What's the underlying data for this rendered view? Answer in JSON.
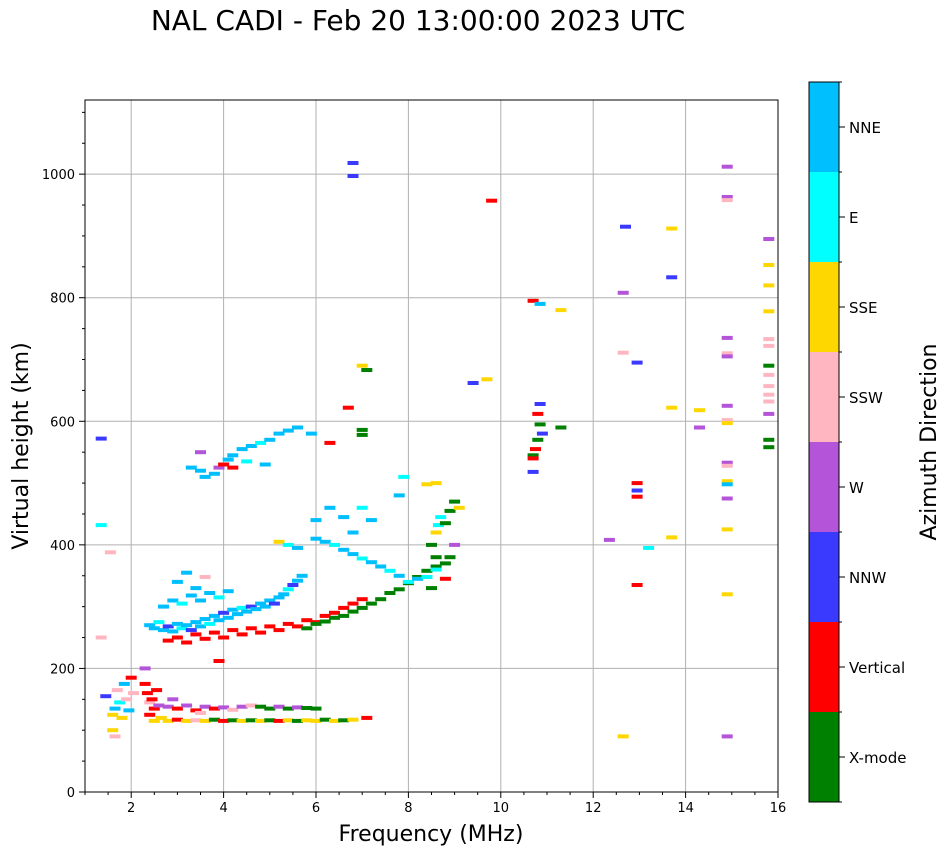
{
  "chart_data": {
    "type": "scatter",
    "title": "NAL CADI - Feb 20 13:00:00 2023 UTC",
    "xlabel": "Frequency (MHz)",
    "ylabel": "Virtual height (km)",
    "xlim": [
      1,
      16
    ],
    "ylim": [
      0,
      1120
    ],
    "xticks": [
      2,
      4,
      6,
      8,
      10,
      12,
      14,
      16
    ],
    "yticks": [
      0,
      200,
      400,
      600,
      800,
      1000
    ],
    "grid": true,
    "colorbar_label": "Azimuth Direction",
    "categories": [
      {
        "name": "X-mode",
        "color": "#008000"
      },
      {
        "name": "Vertical",
        "color": "#ff0000"
      },
      {
        "name": "NNW",
        "color": "#3a3aff"
      },
      {
        "name": "W",
        "color": "#b454d8"
      },
      {
        "name": "SSW",
        "color": "#ffb6c1"
      },
      {
        "name": "SSE",
        "color": "#ffd700"
      },
      {
        "name": "E",
        "color": "#00ffff"
      },
      {
        "name": "NNE",
        "color": "#00bfff"
      }
    ],
    "points": [
      [
        1.35,
        572,
        "NNW"
      ],
      [
        1.35,
        432,
        "E"
      ],
      [
        1.35,
        250,
        "SSW"
      ],
      [
        1.55,
        388,
        "SSW"
      ],
      [
        1.45,
        155,
        "NNW"
      ],
      [
        1.6,
        125,
        "SSE"
      ],
      [
        1.65,
        135,
        "NNE"
      ],
      [
        1.7,
        165,
        "SSW"
      ],
      [
        1.75,
        145,
        "E"
      ],
      [
        1.8,
        120,
        "SSE"
      ],
      [
        1.85,
        175,
        "NNE"
      ],
      [
        1.9,
        150,
        "SSW"
      ],
      [
        1.95,
        132,
        "NNE"
      ],
      [
        2.0,
        185,
        "Vertical"
      ],
      [
        2.05,
        160,
        "SSW"
      ],
      [
        1.6,
        100,
        "SSE"
      ],
      [
        1.65,
        90,
        "SSW"
      ],
      [
        2.3,
        175,
        "Vertical"
      ],
      [
        2.35,
        160,
        "Vertical"
      ],
      [
        2.4,
        145,
        "SSW"
      ],
      [
        2.45,
        150,
        "Vertical"
      ],
      [
        2.5,
        135,
        "Vertical"
      ],
      [
        2.55,
        165,
        "Vertical"
      ],
      [
        2.6,
        140,
        "W"
      ],
      [
        2.65,
        120,
        "SSE"
      ],
      [
        2.3,
        200,
        "W"
      ],
      [
        2.4,
        125,
        "Vertical"
      ],
      [
        2.5,
        115,
        "SSE"
      ],
      [
        2.8,
        138,
        "W"
      ],
      [
        3.0,
        135,
        "Vertical"
      ],
      [
        3.2,
        140,
        "W"
      ],
      [
        3.4,
        132,
        "Vertical"
      ],
      [
        3.6,
        138,
        "W"
      ],
      [
        3.8,
        135,
        "Vertical"
      ],
      [
        4.0,
        137,
        "W"
      ],
      [
        4.2,
        133,
        "SSW"
      ],
      [
        4.4,
        138,
        "W"
      ],
      [
        4.6,
        140,
        "SSW"
      ],
      [
        4.8,
        138,
        "X-mode"
      ],
      [
        5.0,
        135,
        "X-mode"
      ],
      [
        5.2,
        138,
        "W"
      ],
      [
        5.4,
        135,
        "X-mode"
      ],
      [
        5.6,
        137,
        "W"
      ],
      [
        5.8,
        136,
        "X-mode"
      ],
      [
        6.0,
        135,
        "X-mode"
      ],
      [
        2.8,
        115,
        "SSE"
      ],
      [
        3.0,
        117,
        "Vertical"
      ],
      [
        3.2,
        115,
        "SSE"
      ],
      [
        3.4,
        116,
        "SSW"
      ],
      [
        3.6,
        115,
        "SSE"
      ],
      [
        3.8,
        117,
        "X-mode"
      ],
      [
        4.0,
        115,
        "Vertical"
      ],
      [
        4.2,
        116,
        "X-mode"
      ],
      [
        4.4,
        115,
        "SSE"
      ],
      [
        4.6,
        116,
        "X-mode"
      ],
      [
        4.8,
        115,
        "SSE"
      ],
      [
        5.0,
        116,
        "X-mode"
      ],
      [
        5.2,
        115,
        "Vertical"
      ],
      [
        5.4,
        116,
        "SSE"
      ],
      [
        5.6,
        115,
        "X-mode"
      ],
      [
        5.8,
        116,
        "SSE"
      ],
      [
        6.0,
        115,
        "SSE"
      ],
      [
        6.2,
        117,
        "X-mode"
      ],
      [
        6.4,
        115,
        "SSE"
      ],
      [
        6.6,
        116,
        "X-mode"
      ],
      [
        6.8,
        117,
        "SSE"
      ],
      [
        7.1,
        120,
        "Vertical"
      ],
      [
        2.9,
        150,
        "W"
      ],
      [
        3.5,
        128,
        "SSW"
      ],
      [
        2.4,
        270,
        "NNE"
      ],
      [
        2.5,
        265,
        "NNE"
      ],
      [
        2.6,
        275,
        "E"
      ],
      [
        2.7,
        262,
        "NNE"
      ],
      [
        2.8,
        268,
        "NNW"
      ],
      [
        2.9,
        260,
        "NNE"
      ],
      [
        3.0,
        272,
        "NNE"
      ],
      [
        3.1,
        265,
        "E"
      ],
      [
        3.2,
        270,
        "NNE"
      ],
      [
        3.3,
        262,
        "NNW"
      ],
      [
        3.4,
        275,
        "NNE"
      ],
      [
        3.5,
        268,
        "NNE"
      ],
      [
        3.6,
        280,
        "NNE"
      ],
      [
        3.7,
        272,
        "E"
      ],
      [
        3.8,
        285,
        "NNE"
      ],
      [
        3.9,
        278,
        "NNE"
      ],
      [
        4.0,
        290,
        "NNW"
      ],
      [
        4.1,
        282,
        "NNE"
      ],
      [
        4.2,
        295,
        "NNE"
      ],
      [
        4.3,
        288,
        "NNE"
      ],
      [
        4.4,
        298,
        "E"
      ],
      [
        4.5,
        292,
        "NNE"
      ],
      [
        4.6,
        300,
        "NNW"
      ],
      [
        4.7,
        296,
        "NNE"
      ],
      [
        4.8,
        305,
        "NNE"
      ],
      [
        4.9,
        300,
        "NNE"
      ],
      [
        5.0,
        310,
        "NNE"
      ],
      [
        5.1,
        305,
        "NNW"
      ],
      [
        5.2,
        315,
        "NNE"
      ],
      [
        5.3,
        320,
        "NNE"
      ],
      [
        5.4,
        328,
        "E"
      ],
      [
        5.5,
        335,
        "NNW"
      ],
      [
        5.6,
        342,
        "NNE"
      ],
      [
        5.7,
        350,
        "NNE"
      ],
      [
        2.7,
        300,
        "NNE"
      ],
      [
        2.9,
        310,
        "NNE"
      ],
      [
        3.1,
        305,
        "E"
      ],
      [
        3.3,
        318,
        "NNE"
      ],
      [
        3.5,
        310,
        "NNE"
      ],
      [
        3.7,
        322,
        "NNE"
      ],
      [
        3.9,
        315,
        "E"
      ],
      [
        4.1,
        325,
        "NNE"
      ],
      [
        3.0,
        340,
        "NNE"
      ],
      [
        3.2,
        355,
        "NNE"
      ],
      [
        3.4,
        330,
        "NNE"
      ],
      [
        3.6,
        348,
        "SSW"
      ],
      [
        2.8,
        245,
        "Vertical"
      ],
      [
        3.0,
        250,
        "Vertical"
      ],
      [
        3.2,
        242,
        "Vertical"
      ],
      [
        3.4,
        255,
        "Vertical"
      ],
      [
        3.6,
        248,
        "Vertical"
      ],
      [
        3.8,
        258,
        "Vertical"
      ],
      [
        4.0,
        250,
        "Vertical"
      ],
      [
        4.2,
        262,
        "Vertical"
      ],
      [
        4.4,
        255,
        "Vertical"
      ],
      [
        4.6,
        265,
        "Vertical"
      ],
      [
        4.8,
        258,
        "Vertical"
      ],
      [
        5.0,
        268,
        "Vertical"
      ],
      [
        5.2,
        262,
        "Vertical"
      ],
      [
        5.4,
        272,
        "Vertical"
      ],
      [
        5.6,
        268,
        "Vertical"
      ],
      [
        5.8,
        278,
        "Vertical"
      ],
      [
        6.0,
        275,
        "Vertical"
      ],
      [
        6.2,
        285,
        "Vertical"
      ],
      [
        6.4,
        290,
        "Vertical"
      ],
      [
        6.6,
        298,
        "Vertical"
      ],
      [
        6.8,
        305,
        "Vertical"
      ],
      [
        7.0,
        312,
        "Vertical"
      ],
      [
        3.9,
        212,
        "Vertical"
      ],
      [
        5.8,
        265,
        "X-mode"
      ],
      [
        6.0,
        272,
        "X-mode"
      ],
      [
        6.2,
        276,
        "X-mode"
      ],
      [
        6.4,
        282,
        "X-mode"
      ],
      [
        6.6,
        285,
        "X-mode"
      ],
      [
        6.8,
        292,
        "X-mode"
      ],
      [
        7.0,
        298,
        "X-mode"
      ],
      [
        7.2,
        305,
        "X-mode"
      ],
      [
        7.4,
        312,
        "X-mode"
      ],
      [
        7.6,
        322,
        "X-mode"
      ],
      [
        7.8,
        328,
        "X-mode"
      ],
      [
        8.0,
        338,
        "X-mode"
      ],
      [
        8.2,
        348,
        "X-mode"
      ],
      [
        8.4,
        358,
        "X-mode"
      ],
      [
        8.6,
        365,
        "X-mode"
      ],
      [
        8.8,
        370,
        "X-mode"
      ],
      [
        8.9,
        380,
        "X-mode"
      ],
      [
        5.2,
        405,
        "SSE"
      ],
      [
        5.4,
        400,
        "E"
      ],
      [
        5.6,
        395,
        "NNE"
      ],
      [
        6.0,
        410,
        "NNE"
      ],
      [
        6.2,
        405,
        "NNE"
      ],
      [
        6.4,
        400,
        "E"
      ],
      [
        6.6,
        392,
        "NNE"
      ],
      [
        6.8,
        385,
        "NNE"
      ],
      [
        7.0,
        378,
        "E"
      ],
      [
        7.2,
        372,
        "NNE"
      ],
      [
        7.4,
        365,
        "NNE"
      ],
      [
        7.6,
        358,
        "E"
      ],
      [
        7.8,
        350,
        "NNE"
      ],
      [
        8.0,
        340,
        "E"
      ],
      [
        8.2,
        345,
        "NNE"
      ],
      [
        8.4,
        348,
        "E"
      ],
      [
        6.0,
        440,
        "NNE"
      ],
      [
        6.3,
        460,
        "NNE"
      ],
      [
        6.6,
        445,
        "NNE"
      ],
      [
        6.8,
        420,
        "NNE"
      ],
      [
        7.2,
        440,
        "NNE"
      ],
      [
        7.0,
        460,
        "E"
      ],
      [
        7.8,
        480,
        "NNE"
      ],
      [
        7.9,
        510,
        "E"
      ],
      [
        8.5,
        400,
        "X-mode"
      ],
      [
        8.6,
        420,
        "SSE"
      ],
      [
        8.65,
        432,
        "E"
      ],
      [
        8.7,
        445,
        "E"
      ],
      [
        8.8,
        435,
        "X-mode"
      ],
      [
        8.9,
        455,
        "X-mode"
      ],
      [
        9.0,
        470,
        "X-mode"
      ],
      [
        9.1,
        460,
        "SSE"
      ],
      [
        9.0,
        400,
        "W"
      ],
      [
        8.6,
        380,
        "X-mode"
      ],
      [
        8.5,
        330,
        "X-mode"
      ],
      [
        8.6,
        360,
        "E"
      ],
      [
        8.8,
        345,
        "Vertical"
      ],
      [
        8.4,
        498,
        "SSE"
      ],
      [
        8.6,
        500,
        "SSE"
      ],
      [
        3.3,
        525,
        "NNE"
      ],
      [
        3.5,
        520,
        "NNE"
      ],
      [
        3.6,
        510,
        "NNE"
      ],
      [
        3.8,
        515,
        "NNE"
      ],
      [
        3.9,
        525,
        "W"
      ],
      [
        4.0,
        530,
        "Vertical"
      ],
      [
        4.1,
        538,
        "NNE"
      ],
      [
        4.2,
        545,
        "NNE"
      ],
      [
        4.4,
        555,
        "NNE"
      ],
      [
        4.6,
        560,
        "NNE"
      ],
      [
        4.8,
        565,
        "E"
      ],
      [
        5.0,
        570,
        "NNE"
      ],
      [
        5.2,
        580,
        "NNE"
      ],
      [
        5.4,
        585,
        "NNE"
      ],
      [
        5.6,
        590,
        "NNE"
      ],
      [
        5.9,
        580,
        "NNE"
      ],
      [
        4.2,
        525,
        "Vertical"
      ],
      [
        4.5,
        535,
        "E"
      ],
      [
        4.9,
        530,
        "NNE"
      ],
      [
        3.5,
        550,
        "W"
      ],
      [
        6.3,
        565,
        "Vertical"
      ],
      [
        6.8,
        1018,
        "NNW"
      ],
      [
        6.8,
        997,
        "NNW"
      ],
      [
        6.7,
        622,
        "Vertical"
      ],
      [
        7.0,
        690,
        "SSE"
      ],
      [
        7.0,
        586,
        "X-mode"
      ],
      [
        7.0,
        578,
        "X-mode"
      ],
      [
        7.1,
        683,
        "X-mode"
      ],
      [
        9.4,
        662,
        "NNW"
      ],
      [
        9.7,
        668,
        "SSE"
      ],
      [
        9.8,
        957,
        "Vertical"
      ],
      [
        10.7,
        795,
        "Vertical"
      ],
      [
        10.85,
        790,
        "NNE"
      ],
      [
        11.3,
        780,
        "SSE"
      ],
      [
        10.85,
        628,
        "NNW"
      ],
      [
        10.8,
        612,
        "Vertical"
      ],
      [
        10.85,
        595,
        "X-mode"
      ],
      [
        10.9,
        580,
        "NNW"
      ],
      [
        10.8,
        570,
        "X-mode"
      ],
      [
        10.75,
        555,
        "Vertical"
      ],
      [
        10.7,
        545,
        "X-mode"
      ],
      [
        10.7,
        540,
        "Vertical"
      ],
      [
        10.7,
        518,
        "NNW"
      ],
      [
        11.3,
        590,
        "X-mode"
      ],
      [
        12.7,
        915,
        "NNW"
      ],
      [
        12.65,
        808,
        "W"
      ],
      [
        12.65,
        711,
        "SSW"
      ],
      [
        12.95,
        695,
        "NNW"
      ],
      [
        12.95,
        500,
        "Vertical"
      ],
      [
        12.95,
        488,
        "NNW"
      ],
      [
        12.95,
        478,
        "Vertical"
      ],
      [
        12.35,
        408,
        "W"
      ],
      [
        13.2,
        395,
        "E"
      ],
      [
        12.95,
        335,
        "Vertical"
      ],
      [
        12.65,
        90,
        "SSE"
      ],
      [
        13.7,
        912,
        "SSE"
      ],
      [
        13.7,
        833,
        "NNW"
      ],
      [
        13.7,
        622,
        "SSE"
      ],
      [
        13.7,
        412,
        "SSE"
      ],
      [
        14.3,
        618,
        "SSE"
      ],
      [
        14.3,
        590,
        "W"
      ],
      [
        14.9,
        1012,
        "W"
      ],
      [
        14.9,
        963,
        "W"
      ],
      [
        14.9,
        958,
        "SSW"
      ],
      [
        14.9,
        735,
        "W"
      ],
      [
        14.9,
        710,
        "SSW"
      ],
      [
        14.9,
        705,
        "W"
      ],
      [
        14.9,
        625,
        "W"
      ],
      [
        14.9,
        602,
        "SSW"
      ],
      [
        14.9,
        597,
        "SSE"
      ],
      [
        14.9,
        533,
        "W"
      ],
      [
        14.9,
        528,
        "SSW"
      ],
      [
        14.9,
        503,
        "SSE"
      ],
      [
        14.9,
        498,
        "NNE"
      ],
      [
        14.9,
        475,
        "W"
      ],
      [
        14.9,
        425,
        "SSE"
      ],
      [
        14.9,
        320,
        "SSE"
      ],
      [
        14.9,
        90,
        "W"
      ],
      [
        15.8,
        895,
        "W"
      ],
      [
        15.8,
        853,
        "SSE"
      ],
      [
        15.8,
        820,
        "SSE"
      ],
      [
        15.8,
        778,
        "SSE"
      ],
      [
        15.8,
        733,
        "SSW"
      ],
      [
        15.8,
        722,
        "SSW"
      ],
      [
        15.8,
        690,
        "X-mode"
      ],
      [
        15.8,
        675,
        "SSW"
      ],
      [
        15.8,
        657,
        "SSW"
      ],
      [
        15.8,
        643,
        "SSW"
      ],
      [
        15.8,
        632,
        "SSW"
      ],
      [
        15.8,
        612,
        "W"
      ],
      [
        15.8,
        570,
        "X-mode"
      ],
      [
        15.8,
        558,
        "X-mode"
      ]
    ]
  }
}
